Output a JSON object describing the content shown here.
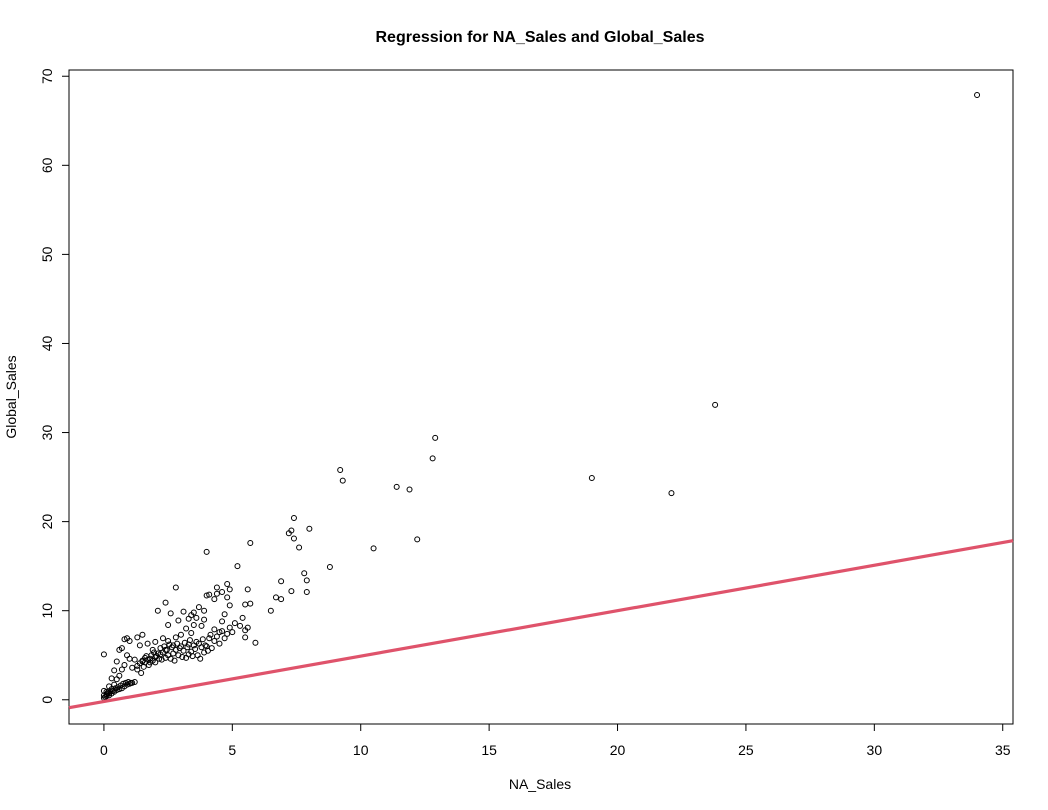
{
  "chart_data": {
    "type": "scatter",
    "title": "Regression for NA_Sales and Global_Sales",
    "xlabel": "NA_Sales",
    "ylabel": "Global_Sales",
    "xlim": [
      -1.36,
      35.4
    ],
    "ylim": [
      -2.72,
      70.7
    ],
    "xticks": [
      0,
      5,
      10,
      15,
      20,
      25,
      30,
      35
    ],
    "yticks": [
      0,
      10,
      20,
      30,
      40,
      50,
      60,
      70
    ],
    "grid": false,
    "regression_line": {
      "color": "#DF536B",
      "intercept": -0.2,
      "slope": 0.51
    },
    "points": [
      [
        34.0,
        67.9
      ],
      [
        23.8,
        33.1
      ],
      [
        22.1,
        23.2
      ],
      [
        19.0,
        24.9
      ],
      [
        12.9,
        29.4
      ],
      [
        12.8,
        27.1
      ],
      [
        12.2,
        18.0
      ],
      [
        11.9,
        23.6
      ],
      [
        11.4,
        23.9
      ],
      [
        10.5,
        17.0
      ],
      [
        9.3,
        24.6
      ],
      [
        9.2,
        25.8
      ],
      [
        8.8,
        14.9
      ],
      [
        8.0,
        19.2
      ],
      [
        7.8,
        14.2
      ],
      [
        7.9,
        13.4
      ],
      [
        7.9,
        12.1
      ],
      [
        7.6,
        17.1
      ],
      [
        7.4,
        18.1
      ],
      [
        7.4,
        20.4
      ],
      [
        7.3,
        19.0
      ],
      [
        7.2,
        18.7
      ],
      [
        7.3,
        12.2
      ],
      [
        6.9,
        13.3
      ],
      [
        6.9,
        11.3
      ],
      [
        6.7,
        11.5
      ],
      [
        6.5,
        10.0
      ],
      [
        5.9,
        6.4
      ],
      [
        5.7,
        17.6
      ],
      [
        5.7,
        10.8
      ],
      [
        5.6,
        12.4
      ],
      [
        5.6,
        8.1
      ],
      [
        5.5,
        10.7
      ],
      [
        5.5,
        7.8
      ],
      [
        5.5,
        7.0
      ],
      [
        5.4,
        9.2
      ],
      [
        5.3,
        8.3
      ],
      [
        5.2,
        15.0
      ],
      [
        4.9,
        12.4
      ],
      [
        4.9,
        10.6
      ],
      [
        4.8,
        13.0
      ],
      [
        4.8,
        11.5
      ],
      [
        4.7,
        9.6
      ],
      [
        4.6,
        12.1
      ],
      [
        4.6,
        8.8
      ],
      [
        4.5,
        7.6
      ],
      [
        4.4,
        12.6
      ],
      [
        4.4,
        11.9
      ],
      [
        4.3,
        11.3
      ],
      [
        4.3,
        7.9
      ],
      [
        4.1,
        11.8
      ],
      [
        4.0,
        11.7
      ],
      [
        4.0,
        16.6
      ],
      [
        3.9,
        10.0
      ],
      [
        3.9,
        9.0
      ],
      [
        3.8,
        8.3
      ],
      [
        3.7,
        10.4
      ],
      [
        3.6,
        9.2
      ],
      [
        3.5,
        9.8
      ],
      [
        3.5,
        8.4
      ],
      [
        3.4,
        9.5
      ],
      [
        3.4,
        7.5
      ],
      [
        3.3,
        9.1
      ],
      [
        3.3,
        6.2
      ],
      [
        3.2,
        8.0
      ],
      [
        3.1,
        9.9
      ],
      [
        3.0,
        7.3
      ],
      [
        2.9,
        8.9
      ],
      [
        2.8,
        12.6
      ],
      [
        2.8,
        7.0
      ],
      [
        2.7,
        6.1
      ],
      [
        2.6,
        9.7
      ],
      [
        2.5,
        8.4
      ],
      [
        2.5,
        6.6
      ],
      [
        2.4,
        10.9
      ],
      [
        2.4,
        5.6
      ],
      [
        2.3,
        6.9
      ],
      [
        2.2,
        5.1
      ],
      [
        2.1,
        10.0
      ],
      [
        2.0,
        6.5
      ],
      [
        2.0,
        4.8
      ],
      [
        1.9,
        5.6
      ],
      [
        1.8,
        4.2
      ],
      [
        1.7,
        6.3
      ],
      [
        1.6,
        4.7
      ],
      [
        1.5,
        7.3
      ],
      [
        1.5,
        4.3
      ],
      [
        1.4,
        6.1
      ],
      [
        1.3,
        7.0
      ],
      [
        1.3,
        3.8
      ],
      [
        1.2,
        4.5
      ],
      [
        1.1,
        3.6
      ],
      [
        1.0,
        6.6
      ],
      [
        1.0,
        4.6
      ],
      [
        0.9,
        6.9
      ],
      [
        0.9,
        5.0
      ],
      [
        0.8,
        6.8
      ],
      [
        0.8,
        3.9
      ],
      [
        0.7,
        5.8
      ],
      [
        0.7,
        3.4
      ],
      [
        0.6,
        5.6
      ],
      [
        0.6,
        2.7
      ],
      [
        0.5,
        4.3
      ],
      [
        0.5,
        2.3
      ],
      [
        0.4,
        3.3
      ],
      [
        0.4,
        1.7
      ],
      [
        0.3,
        2.4
      ],
      [
        0.3,
        1.2
      ],
      [
        0.2,
        1.5
      ],
      [
        0.2,
        0.7
      ],
      [
        0.1,
        0.9
      ],
      [
        0.1,
        0.4
      ],
      [
        0.0,
        5.1
      ],
      [
        0.0,
        1.0
      ],
      [
        0.0,
        0.5
      ],
      [
        0.0,
        0.2
      ],
      [
        0.05,
        0.3
      ],
      [
        0.1,
        0.6
      ],
      [
        0.15,
        0.8
      ],
      [
        0.2,
        0.5
      ],
      [
        0.25,
        0.9
      ],
      [
        0.3,
        0.7
      ],
      [
        0.35,
        1.0
      ],
      [
        0.4,
        0.9
      ],
      [
        0.45,
        1.3
      ],
      [
        0.5,
        1.1
      ],
      [
        0.55,
        1.4
      ],
      [
        0.6,
        1.2
      ],
      [
        0.65,
        1.6
      ],
      [
        0.7,
        1.3
      ],
      [
        0.75,
        1.8
      ],
      [
        0.8,
        1.5
      ],
      [
        0.85,
        1.9
      ],
      [
        0.9,
        1.7
      ],
      [
        0.95,
        2.0
      ],
      [
        1.0,
        1.8
      ],
      [
        1.05,
        1.9
      ],
      [
        1.1,
        1.9
      ],
      [
        1.2,
        2.0
      ],
      [
        1.3,
        3.4
      ],
      [
        1.4,
        4.1
      ],
      [
        1.45,
        3.0
      ],
      [
        1.5,
        4.4
      ],
      [
        1.55,
        3.7
      ],
      [
        1.6,
        4.2
      ],
      [
        1.65,
        4.9
      ],
      [
        1.7,
        4.5
      ],
      [
        1.75,
        3.9
      ],
      [
        1.8,
        4.6
      ],
      [
        1.85,
        5.0
      ],
      [
        1.9,
        4.4
      ],
      [
        1.95,
        5.3
      ],
      [
        2.0,
        4.2
      ],
      [
        2.05,
        4.9
      ],
      [
        2.1,
        5.2
      ],
      [
        2.15,
        4.6
      ],
      [
        2.2,
        5.8
      ],
      [
        2.25,
        4.5
      ],
      [
        2.3,
        5.3
      ],
      [
        2.35,
        6.0
      ],
      [
        2.4,
        4.7
      ],
      [
        2.45,
        5.6
      ],
      [
        2.5,
        5.0
      ],
      [
        2.55,
        6.2
      ],
      [
        2.6,
        4.6
      ],
      [
        2.65,
        5.9
      ],
      [
        2.7,
        5.2
      ],
      [
        2.75,
        4.4
      ],
      [
        2.8,
        5.6
      ],
      [
        2.85,
        6.3
      ],
      [
        2.9,
        5.0
      ],
      [
        2.95,
        5.8
      ],
      [
        3.0,
        6.0
      ],
      [
        3.05,
        4.8
      ],
      [
        3.1,
        5.5
      ],
      [
        3.15,
        6.4
      ],
      [
        3.2,
        4.7
      ],
      [
        3.25,
        5.9
      ],
      [
        3.3,
        5.1
      ],
      [
        3.35,
        6.7
      ],
      [
        3.4,
        5.4
      ],
      [
        3.45,
        4.9
      ],
      [
        3.5,
        6.1
      ],
      [
        3.55,
        5.7
      ],
      [
        3.6,
        6.5
      ],
      [
        3.65,
        5.0
      ],
      [
        3.7,
        6.3
      ],
      [
        3.75,
        4.6
      ],
      [
        3.8,
        5.9
      ],
      [
        3.85,
        6.8
      ],
      [
        3.9,
        5.3
      ],
      [
        3.95,
        6.1
      ],
      [
        4.0,
        6.0
      ],
      [
        4.05,
        5.5
      ],
      [
        4.1,
        6.9
      ],
      [
        4.15,
        7.3
      ],
      [
        4.2,
        5.8
      ],
      [
        4.3,
        6.6
      ],
      [
        4.4,
        7.1
      ],
      [
        4.5,
        6.3
      ],
      [
        4.6,
        7.7
      ],
      [
        4.7,
        6.9
      ],
      [
        4.8,
        7.4
      ],
      [
        4.9,
        8.1
      ],
      [
        5.0,
        7.6
      ],
      [
        5.1,
        8.6
      ]
    ]
  }
}
